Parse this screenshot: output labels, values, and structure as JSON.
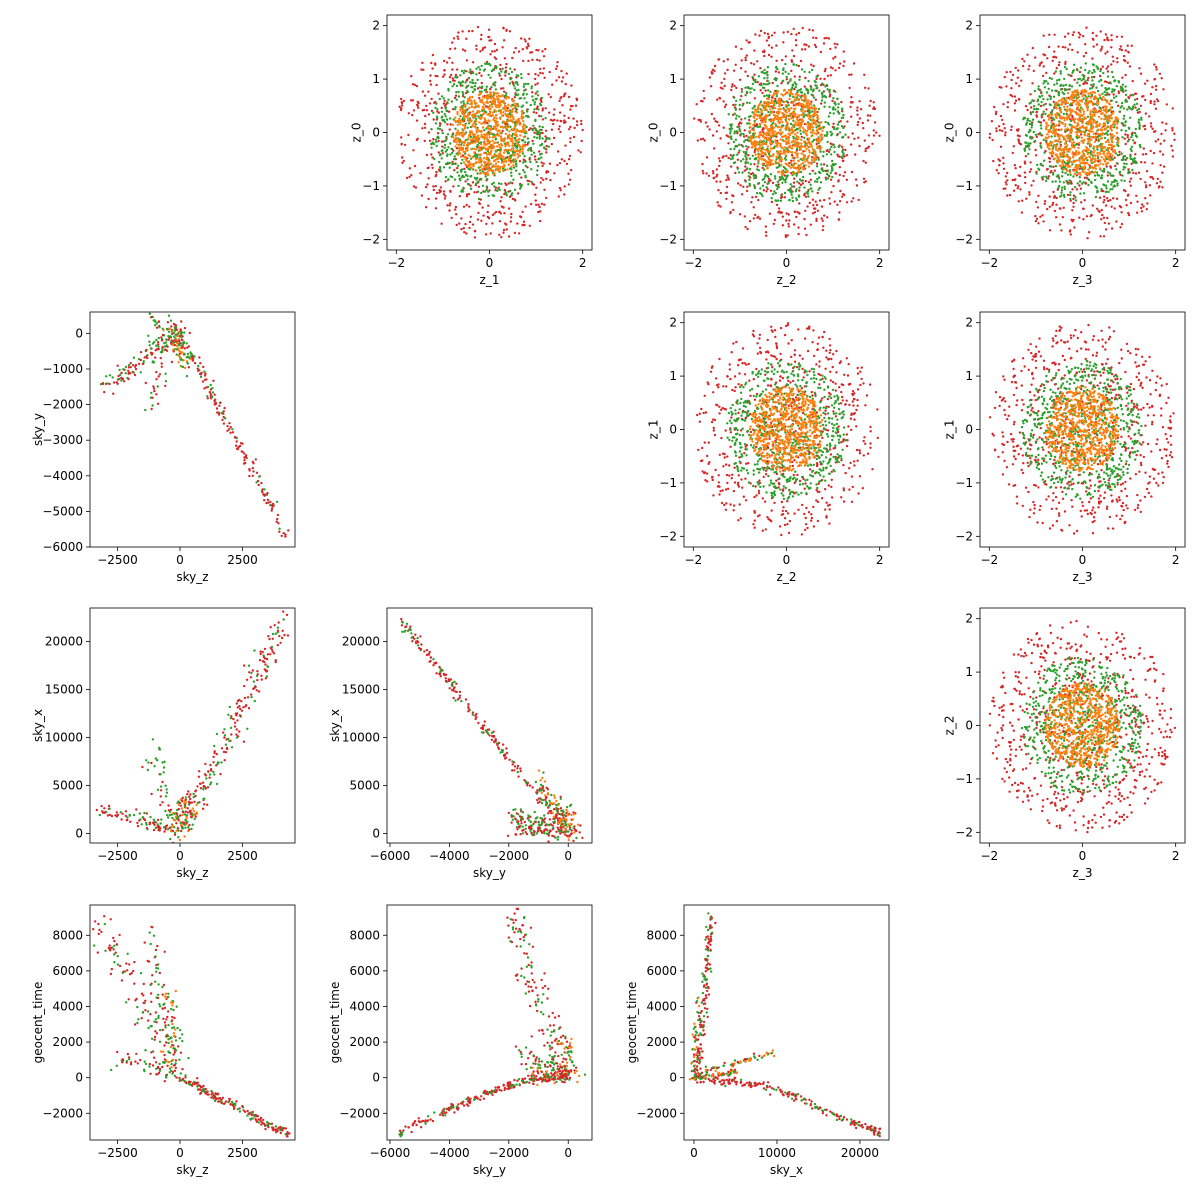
{
  "colors": {
    "inner": "#ff7f0e",
    "middle": "#2ca02c",
    "outer": "#d62728"
  },
  "chart_data": [
    {
      "type": "scatter",
      "row": 0,
      "col": 1,
      "distribution": "disc",
      "xlabel": "z_1",
      "ylabel": "z_0",
      "xlim": [
        -2.2,
        2.2
      ],
      "ylim": [
        -2.2,
        2.2
      ],
      "xticks": [
        -2,
        0,
        2
      ],
      "yticks": [
        -2,
        -1,
        0,
        1,
        2
      ],
      "series": [
        {
          "color_key": "outer",
          "count": 650,
          "radius": [
            0.0,
            2.0
          ]
        },
        {
          "color_key": "middle",
          "count": 650,
          "radius": [
            0.0,
            1.3
          ]
        },
        {
          "color_key": "inner",
          "count": 650,
          "radius": [
            0.0,
            0.8
          ]
        }
      ]
    },
    {
      "type": "scatter",
      "row": 0,
      "col": 2,
      "distribution": "disc",
      "xlabel": "z_2",
      "ylabel": "z_0",
      "xlim": [
        -2.2,
        2.2
      ],
      "ylim": [
        -2.2,
        2.2
      ],
      "xticks": [
        -2,
        0,
        2
      ],
      "yticks": [
        -2,
        -1,
        0,
        1,
        2
      ],
      "series": [
        {
          "color_key": "outer",
          "count": 650,
          "radius": [
            0.0,
            2.0
          ]
        },
        {
          "color_key": "middle",
          "count": 650,
          "radius": [
            0.0,
            1.3
          ]
        },
        {
          "color_key": "inner",
          "count": 650,
          "radius": [
            0.0,
            0.8
          ]
        }
      ]
    },
    {
      "type": "scatter",
      "row": 0,
      "col": 3,
      "distribution": "disc",
      "xlabel": "z_3",
      "ylabel": "z_0",
      "xlim": [
        -2.2,
        2.2
      ],
      "ylim": [
        -2.2,
        2.2
      ],
      "xticks": [
        -2,
        0,
        2
      ],
      "yticks": [
        -2,
        -1,
        0,
        1,
        2
      ],
      "series": [
        {
          "color_key": "outer",
          "count": 650,
          "radius": [
            0.0,
            2.0
          ]
        },
        {
          "color_key": "middle",
          "count": 650,
          "radius": [
            0.0,
            1.3
          ]
        },
        {
          "color_key": "inner",
          "count": 650,
          "radius": [
            0.0,
            0.8
          ]
        }
      ]
    },
    {
      "type": "scatter",
      "row": 1,
      "col": 2,
      "distribution": "disc",
      "xlabel": "z_2",
      "ylabel": "z_1",
      "xlim": [
        -2.2,
        2.2
      ],
      "ylim": [
        -2.2,
        2.2
      ],
      "xticks": [
        -2,
        0,
        2
      ],
      "yticks": [
        -2,
        -1,
        0,
        1,
        2
      ],
      "series": [
        {
          "color_key": "outer",
          "count": 650,
          "radius": [
            0.0,
            2.0
          ]
        },
        {
          "color_key": "middle",
          "count": 650,
          "radius": [
            0.0,
            1.3
          ]
        },
        {
          "color_key": "inner",
          "count": 650,
          "radius": [
            0.0,
            0.8
          ]
        }
      ]
    },
    {
      "type": "scatter",
      "row": 1,
      "col": 3,
      "distribution": "disc",
      "xlabel": "z_3",
      "ylabel": "z_1",
      "xlim": [
        -2.2,
        2.2
      ],
      "ylim": [
        -2.2,
        2.2
      ],
      "xticks": [
        -2,
        0,
        2
      ],
      "yticks": [
        -2,
        -1,
        0,
        1,
        2
      ],
      "series": [
        {
          "color_key": "outer",
          "count": 650,
          "radius": [
            0.0,
            2.0
          ]
        },
        {
          "color_key": "middle",
          "count": 650,
          "radius": [
            0.0,
            1.3
          ]
        },
        {
          "color_key": "inner",
          "count": 650,
          "radius": [
            0.0,
            0.8
          ]
        }
      ]
    },
    {
      "type": "scatter",
      "row": 2,
      "col": 3,
      "distribution": "disc",
      "xlabel": "z_3",
      "ylabel": "z_2",
      "xlim": [
        -2.2,
        2.2
      ],
      "ylim": [
        -2.2,
        2.2
      ],
      "xticks": [
        -2,
        0,
        2
      ],
      "yticks": [
        -2,
        -1,
        0,
        1,
        2
      ],
      "series": [
        {
          "color_key": "outer",
          "count": 650,
          "radius": [
            0.0,
            2.0
          ]
        },
        {
          "color_key": "middle",
          "count": 650,
          "radius": [
            0.0,
            1.3
          ]
        },
        {
          "color_key": "inner",
          "count": 650,
          "radius": [
            0.0,
            0.8
          ]
        }
      ]
    },
    {
      "type": "scatter",
      "row": 1,
      "col": 0,
      "distribution": "branches",
      "xlabel": "sky_z",
      "ylabel": "sky_y",
      "xlim": [
        -3600,
        4600
      ],
      "ylim": [
        -6000,
        600
      ],
      "xticks": [
        -2500,
        0,
        2500
      ],
      "yticks": [
        -6000,
        -5000,
        -4000,
        -3000,
        -2000,
        -1000,
        0
      ],
      "branches": [
        {
          "from": [
            0,
            0
          ],
          "to": [
            4300,
            -5700
          ],
          "count": 160,
          "spread": 110,
          "colors": [
            "outer",
            "outer",
            "outer",
            "middle"
          ]
        },
        {
          "from": [
            0,
            0
          ],
          "to": [
            -1300,
            -600
          ],
          "count": 70,
          "spread": 160,
          "colors": [
            "outer",
            "middle"
          ]
        },
        {
          "from": [
            -1300,
            -700
          ],
          "to": [
            -3200,
            -1500
          ],
          "count": 60,
          "spread": 150,
          "colors": [
            "outer",
            "outer",
            "middle"
          ]
        },
        {
          "from": [
            -300,
            -300
          ],
          "to": [
            -1300,
            -2200
          ],
          "count": 30,
          "spread": 200,
          "colors": [
            "outer",
            "middle"
          ]
        },
        {
          "from": [
            0,
            0
          ],
          "to": [
            -1300,
            500
          ],
          "count": 30,
          "spread": 120,
          "colors": [
            "outer",
            "middle"
          ]
        },
        {
          "from": [
            -300,
            200
          ],
          "to": [
            300,
            -1000
          ],
          "count": 80,
          "spread": 130,
          "colors": [
            "inner",
            "middle",
            "outer"
          ]
        }
      ]
    },
    {
      "type": "scatter",
      "row": 2,
      "col": 0,
      "distribution": "branches",
      "xlabel": "sky_z",
      "ylabel": "sky_x",
      "xlim": [
        -3600,
        4600
      ],
      "ylim": [
        -1000,
        23500
      ],
      "xticks": [
        -2500,
        0,
        2500
      ],
      "yticks": [
        0,
        5000,
        10000,
        15000,
        20000
      ],
      "branches": [
        {
          "from": [
            0,
            0
          ],
          "to": [
            4300,
            22500
          ],
          "count": 200,
          "spread": 200,
          "colors": [
            "outer",
            "outer",
            "outer",
            "middle"
          ]
        },
        {
          "from": [
            0,
            200
          ],
          "to": [
            -3200,
            2600
          ],
          "count": 90,
          "spread": 120,
          "colors": [
            "outer",
            "outer",
            "middle"
          ]
        },
        {
          "from": [
            -100,
            800
          ],
          "to": [
            -1300,
            8000
          ],
          "count": 30,
          "spread": 150,
          "colors": [
            "outer",
            "middle"
          ]
        },
        {
          "from": [
            -200,
            500
          ],
          "to": [
            -900,
            10000
          ],
          "count": 12,
          "spread": 100,
          "colors": [
            "middle"
          ]
        },
        {
          "from": [
            -100,
            0
          ],
          "to": [
            300,
            4000
          ],
          "count": 100,
          "spread": 220,
          "colors": [
            "inner",
            "middle",
            "outer"
          ]
        }
      ]
    },
    {
      "type": "scatter",
      "row": 2,
      "col": 1,
      "distribution": "branches",
      "xlabel": "sky_y",
      "ylabel": "sky_x",
      "xlim": [
        -6100,
        800
      ],
      "ylim": [
        -1000,
        23500
      ],
      "xticks": [
        -6000,
        -4000,
        -2000,
        0
      ],
      "yticks": [
        0,
        5000,
        10000,
        15000,
        20000
      ],
      "branches": [
        {
          "from": [
            0,
            0
          ],
          "to": [
            -5700,
            22400
          ],
          "count": 220,
          "spread": 70,
          "colors": [
            "outer",
            "outer",
            "outer",
            "middle"
          ]
        },
        {
          "from": [
            0,
            300
          ],
          "to": [
            -1900,
            1800
          ],
          "count": 90,
          "spread": 140,
          "colors": [
            "outer",
            "middle"
          ]
        },
        {
          "from": [
            0,
            0
          ],
          "to": [
            -1700,
            500
          ],
          "count": 60,
          "spread": 120,
          "colors": [
            "outer",
            "outer",
            "middle"
          ]
        },
        {
          "from": [
            -100,
            300
          ],
          "to": [
            -1000,
            6000
          ],
          "count": 70,
          "spread": 150,
          "colors": [
            "outer",
            "middle",
            "inner"
          ]
        },
        {
          "from": [
            300,
            0
          ],
          "to": [
            -200,
            2500
          ],
          "count": 60,
          "spread": 200,
          "colors": [
            "middle",
            "inner",
            "outer"
          ]
        }
      ]
    },
    {
      "type": "scatter",
      "row": 3,
      "col": 0,
      "distribution": "branches",
      "xlabel": "sky_z",
      "ylabel": "geocent_time",
      "xlim": [
        -3600,
        4600
      ],
      "ylim": [
        -3500,
        9700
      ],
      "xticks": [
        -2500,
        0,
        2500
      ],
      "yticks": [
        -2000,
        0,
        2000,
        4000,
        6000,
        8000
      ],
      "branches": [
        {
          "from": [
            0,
            0
          ],
          "to": [
            4300,
            -3200
          ],
          "count": 180,
          "spread": 80,
          "colors": [
            "outer",
            "outer",
            "outer",
            "middle"
          ]
        },
        {
          "from": [
            -100,
            500
          ],
          "to": [
            -3300,
            8800
          ],
          "count": 110,
          "spread": 280,
          "colors": [
            "outer",
            "outer",
            "middle"
          ]
        },
        {
          "from": [
            0,
            600
          ],
          "to": [
            -1300,
            8500
          ],
          "count": 60,
          "spread": 200,
          "colors": [
            "outer",
            "middle"
          ]
        },
        {
          "from": [
            -200,
            400
          ],
          "to": [
            -2600,
            1100
          ],
          "count": 45,
          "spread": 180,
          "colors": [
            "outer",
            "middle"
          ]
        },
        {
          "from": [
            -400,
            0
          ],
          "to": [
            -400,
            4500
          ],
          "count": 60,
          "spread": 150,
          "colors": [
            "middle",
            "outer",
            "inner"
          ]
        }
      ]
    },
    {
      "type": "scatter",
      "row": 3,
      "col": 1,
      "distribution": "branches",
      "xlabel": "sky_y",
      "ylabel": "geocent_time",
      "xlim": [
        -6100,
        800
      ],
      "ylim": [
        -3500,
        9700
      ],
      "xticks": [
        -6000,
        -4000,
        -2000,
        0
      ],
      "yticks": [
        -2000,
        0,
        2000,
        4000,
        6000,
        8000
      ],
      "curve_branch": {
        "x": [
          -5700,
          -4500,
          -3300,
          -2300,
          -1500,
          -700,
          0
        ],
        "y": [
          -3100,
          -2200,
          -1300,
          -600,
          -200,
          0,
          100
        ],
        "count": 240,
        "spread": 110
      },
      "branches": [
        {
          "from": [
            -200,
            200
          ],
          "to": [
            -1900,
            9100
          ],
          "count": 130,
          "spread": 220,
          "colors": [
            "outer",
            "outer",
            "middle"
          ]
        },
        {
          "from": [
            0,
            200
          ],
          "to": [
            -1600,
            1400
          ],
          "count": 60,
          "spread": 140,
          "colors": [
            "outer",
            "middle"
          ]
        },
        {
          "from": [
            0,
            0
          ],
          "to": [
            -1200,
            200
          ],
          "count": 50,
          "spread": 120,
          "colors": [
            "outer",
            "inner",
            "middle"
          ]
        },
        {
          "from": [
            200,
            0
          ],
          "to": [
            -200,
            2500
          ],
          "count": 50,
          "spread": 160,
          "colors": [
            "middle",
            "outer",
            "inner"
          ]
        }
      ]
    },
    {
      "type": "scatter",
      "row": 3,
      "col": 2,
      "distribution": "branches",
      "xlabel": "sky_x",
      "ylabel": "geocent_time",
      "xlim": [
        -1200,
        23500
      ],
      "ylim": [
        -3500,
        9700
      ],
      "xticks": [
        0,
        10000,
        20000
      ],
      "yticks": [
        -2000,
        0,
        2000,
        4000,
        6000,
        8000
      ],
      "curve_branch": {
        "x": [
          0,
          4000,
          8000,
          12000,
          16000,
          20000,
          22500
        ],
        "y": [
          0,
          -200,
          -400,
          -1000,
          -1900,
          -2700,
          -3100
        ],
        "count": 220,
        "spread": 120
      },
      "branches": [
        {
          "from": [
            400,
            0
          ],
          "to": [
            2100,
            9100
          ],
          "count": 150,
          "spread": 250,
          "colors": [
            "outer",
            "outer",
            "middle"
          ]
        },
        {
          "from": [
            0,
            200
          ],
          "to": [
            9800,
            1400
          ],
          "count": 60,
          "spread": 150,
          "colors": [
            "outer",
            "middle",
            "inner"
          ]
        },
        {
          "from": [
            0,
            0
          ],
          "to": [
            500,
            4500
          ],
          "count": 50,
          "spread": 180,
          "colors": [
            "middle",
            "outer",
            "inner"
          ]
        },
        {
          "from": [
            0,
            0
          ],
          "to": [
            5000,
            300
          ],
          "count": 60,
          "spread": 150,
          "colors": [
            "inner",
            "outer",
            "middle"
          ]
        }
      ]
    }
  ]
}
